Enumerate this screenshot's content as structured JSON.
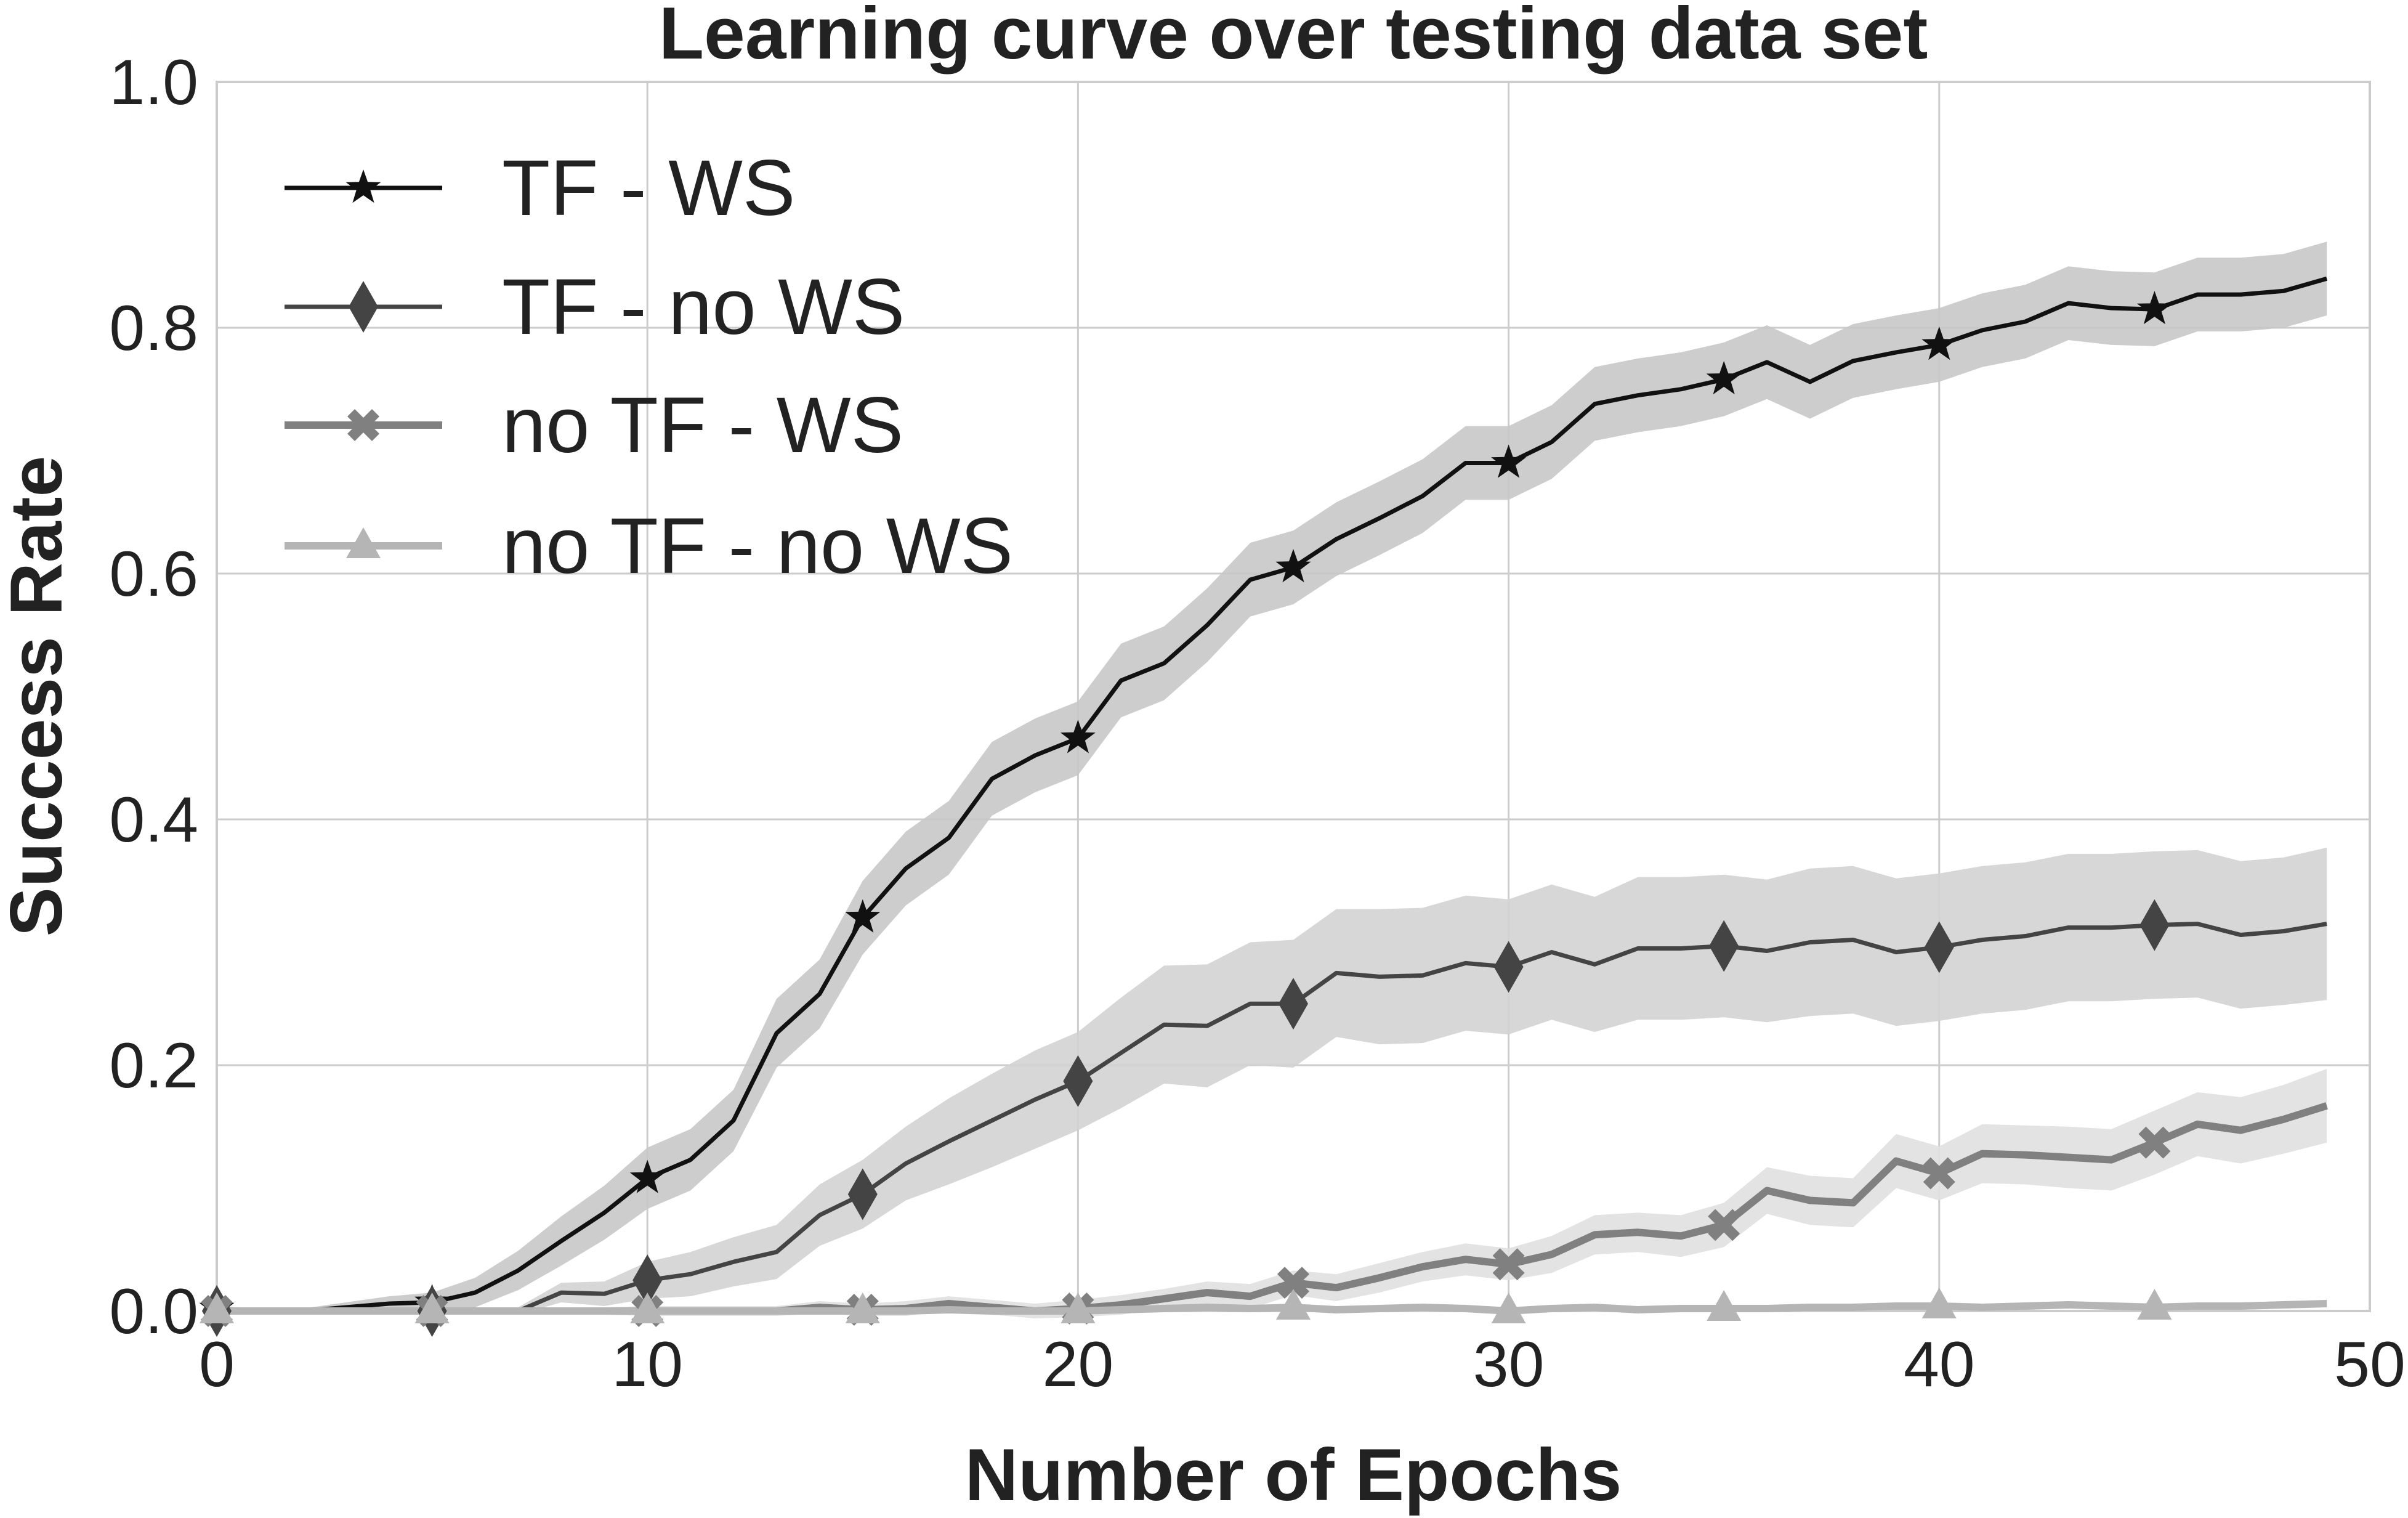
{
  "chart_data": {
    "type": "line",
    "title": "Learning curve over testing data set",
    "xlabel": "Number of Epochs",
    "ylabel": "Success Rate",
    "xlim": [
      0,
      50
    ],
    "ylim": [
      0,
      1.0
    ],
    "x_ticks": [
      "0",
      "10",
      "20",
      "30",
      "40",
      "50"
    ],
    "y_ticks": [
      "0.0",
      "0.2",
      "0.4",
      "0.6",
      "0.8",
      "1.0"
    ],
    "grid": true,
    "legend_position": "top-left",
    "x": [
      0,
      1,
      2,
      3,
      4,
      5,
      6,
      7,
      8,
      9,
      10,
      11,
      12,
      13,
      14,
      15,
      16,
      17,
      18,
      19,
      20,
      21,
      22,
      23,
      24,
      25,
      26,
      27,
      28,
      29,
      30,
      31,
      32,
      33,
      34,
      35,
      36,
      37,
      38,
      39,
      40,
      41,
      42,
      43,
      44,
      45,
      46,
      47,
      48,
      49
    ],
    "series": [
      {
        "name": "TF - WS",
        "color": "#111111",
        "marker": "star",
        "line_width": 7,
        "band_color": "#c8c8c8",
        "values": [
          0.002,
          0.0,
          0.0,
          0.003,
          0.006,
          0.007,
          0.015,
          0.033,
          0.057,
          0.08,
          0.108,
          0.123,
          0.155,
          0.226,
          0.258,
          0.32,
          0.36,
          0.385,
          0.433,
          0.452,
          0.466,
          0.513,
          0.527,
          0.558,
          0.595,
          0.605,
          0.628,
          0.645,
          0.663,
          0.69,
          0.69,
          0.707,
          0.738,
          0.745,
          0.75,
          0.758,
          0.772,
          0.756,
          0.773,
          0.78,
          0.786,
          0.798,
          0.805,
          0.82,
          0.816,
          0.815,
          0.827,
          0.827,
          0.83,
          0.84
        ],
        "band": [
          0.002,
          0.002,
          0.002,
          0.004,
          0.006,
          0.008,
          0.012,
          0.016,
          0.02,
          0.022,
          0.025,
          0.025,
          0.025,
          0.028,
          0.028,
          0.03,
          0.03,
          0.03,
          0.03,
          0.03,
          0.03,
          0.03,
          0.03,
          0.03,
          0.03,
          0.03,
          0.03,
          0.03,
          0.03,
          0.03,
          0.03,
          0.03,
          0.03,
          0.03,
          0.03,
          0.03,
          0.03,
          0.03,
          0.03,
          0.03,
          0.03,
          0.03,
          0.03,
          0.03,
          0.03,
          0.03,
          0.03,
          0.03,
          0.03,
          0.03
        ]
      },
      {
        "name": "TF - no WS",
        "color": "#444444",
        "marker": "diamond",
        "line_width": 7,
        "band_color": "#d3d3d3",
        "values": [
          0.0,
          0.0,
          0.0,
          0.0,
          0.0,
          0.0,
          0.0,
          0.0,
          0.015,
          0.014,
          0.025,
          0.03,
          0.04,
          0.048,
          0.078,
          0.095,
          0.12,
          0.138,
          0.155,
          0.172,
          0.187,
          0.21,
          0.233,
          0.232,
          0.25,
          0.25,
          0.275,
          0.272,
          0.273,
          0.283,
          0.28,
          0.292,
          0.282,
          0.295,
          0.295,
          0.297,
          0.293,
          0.3,
          0.302,
          0.292,
          0.296,
          0.302,
          0.305,
          0.312,
          0.312,
          0.314,
          0.315,
          0.306,
          0.309,
          0.315
        ],
        "band": [
          0.0,
          0.0,
          0.0,
          0.0,
          0.0,
          0.0,
          0.0,
          0.003,
          0.008,
          0.01,
          0.015,
          0.018,
          0.02,
          0.022,
          0.025,
          0.028,
          0.03,
          0.035,
          0.038,
          0.04,
          0.04,
          0.045,
          0.048,
          0.05,
          0.05,
          0.052,
          0.052,
          0.055,
          0.055,
          0.055,
          0.055,
          0.055,
          0.055,
          0.058,
          0.058,
          0.058,
          0.058,
          0.06,
          0.06,
          0.06,
          0.06,
          0.06,
          0.06,
          0.06,
          0.06,
          0.06,
          0.06,
          0.06,
          0.06,
          0.062
        ]
      },
      {
        "name": "no TF - WS",
        "color": "#808080",
        "marker": "x",
        "line_width": 12,
        "band_color": "#e0e0e0",
        "values": [
          0.0,
          0.0,
          0.0,
          0.0,
          0.0,
          0.0,
          0.0,
          0.0,
          0.0,
          0.0,
          0.0,
          0.0,
          0.0,
          0.0,
          0.003,
          0.001,
          0.002,
          0.006,
          0.003,
          0.0,
          0.002,
          0.005,
          0.01,
          0.015,
          0.012,
          0.023,
          0.019,
          0.027,
          0.036,
          0.042,
          0.038,
          0.046,
          0.062,
          0.064,
          0.061,
          0.07,
          0.098,
          0.09,
          0.088,
          0.122,
          0.112,
          0.128,
          0.127,
          0.125,
          0.123,
          0.137,
          0.152,
          0.147,
          0.156,
          0.167
        ],
        "band": [
          0.0,
          0.0,
          0.0,
          0.0,
          0.0,
          0.0,
          0.0,
          0.0,
          0.002,
          0.003,
          0.004,
          0.004,
          0.004,
          0.004,
          0.005,
          0.005,
          0.006,
          0.006,
          0.006,
          0.006,
          0.007,
          0.008,
          0.008,
          0.009,
          0.01,
          0.01,
          0.011,
          0.012,
          0.012,
          0.013,
          0.013,
          0.015,
          0.016,
          0.016,
          0.017,
          0.018,
          0.019,
          0.02,
          0.02,
          0.022,
          0.022,
          0.024,
          0.024,
          0.025,
          0.025,
          0.026,
          0.026,
          0.027,
          0.028,
          0.03
        ]
      },
      {
        "name": "no TF - no WS",
        "color": "#b5b5b5",
        "marker": "triangle",
        "line_width": 12,
        "band_color": "#ececec",
        "values": [
          0.0,
          0.0,
          0.0,
          0.0,
          0.0,
          0.0,
          0.0,
          0.0,
          0.0,
          0.0,
          0.0,
          0.0,
          0.0,
          0.0,
          0.0,
          0.0,
          0.0,
          0.001,
          0.0,
          0.0,
          0.0,
          0.001,
          0.002,
          0.003,
          0.002,
          0.003,
          0.001,
          0.002,
          0.003,
          0.002,
          0.0,
          0.002,
          0.003,
          0.001,
          0.002,
          0.002,
          0.002,
          0.003,
          0.003,
          0.004,
          0.004,
          0.003,
          0.004,
          0.005,
          0.004,
          0.003,
          0.004,
          0.004,
          0.005,
          0.006
        ],
        "band": [
          0.0,
          0.0,
          0.0,
          0.0,
          0.0,
          0.0,
          0.0,
          0.0,
          0.0,
          0.0,
          0.0,
          0.0,
          0.0,
          0.0,
          0.0,
          0.0,
          0.001,
          0.001,
          0.001,
          0.001,
          0.002,
          0.002,
          0.002,
          0.002,
          0.002,
          0.003,
          0.002,
          0.002,
          0.002,
          0.002,
          0.002,
          0.002,
          0.002,
          0.002,
          0.002,
          0.003,
          0.003,
          0.003,
          0.003,
          0.003,
          0.003,
          0.003,
          0.003,
          0.003,
          0.003,
          0.003,
          0.003,
          0.003,
          0.003,
          0.003
        ]
      }
    ],
    "marker_x": [
      0,
      5,
      10,
      15,
      20,
      25,
      30,
      35,
      40,
      45
    ]
  }
}
